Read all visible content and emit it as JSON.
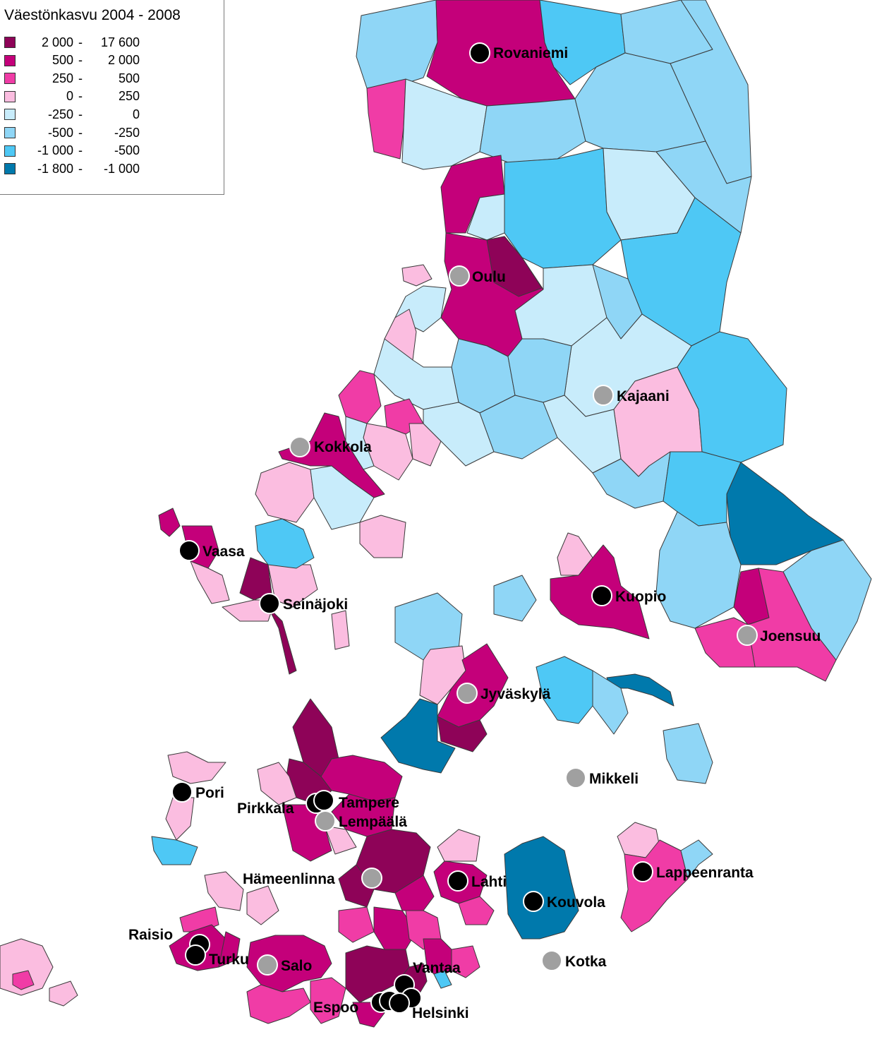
{
  "legend": {
    "title": "Väestönkasvu 2004 - 2008",
    "classes": [
      {
        "low": "2 000",
        "high": "17 600",
        "color": "#8e0358"
      },
      {
        "low": "500",
        "high": "2 000",
        "color": "#c4007a"
      },
      {
        "low": "250",
        "high": "500",
        "color": "#f03ca6"
      },
      {
        "low": "0",
        "high": "250",
        "color": "#fbbde0"
      },
      {
        "low": "-250",
        "high": "0",
        "color": "#c8ecfb"
      },
      {
        "low": "-500",
        "high": "-250",
        "color": "#8fd6f6"
      },
      {
        "low": "-1 000",
        "high": "-500",
        "color": "#4ec8f5"
      },
      {
        "low": "-1 800",
        "high": "-1 000",
        "color": "#0079ac"
      }
    ]
  },
  "cities": [
    {
      "name": "Rovaniemi",
      "marker": "black"
    },
    {
      "name": "Oulu",
      "marker": "gray"
    },
    {
      "name": "Kajaani",
      "marker": "gray"
    },
    {
      "name": "Kokkola",
      "marker": "gray"
    },
    {
      "name": "Vaasa",
      "marker": "black"
    },
    {
      "name": "Seinäjoki",
      "marker": "black"
    },
    {
      "name": "Kuopio",
      "marker": "black"
    },
    {
      "name": "Joensuu",
      "marker": "gray"
    },
    {
      "name": "Jyväskylä",
      "marker": "gray"
    },
    {
      "name": "Mikkeli",
      "marker": "gray"
    },
    {
      "name": "Pori",
      "marker": "black"
    },
    {
      "name": "Pirkkala",
      "marker": "black"
    },
    {
      "name": "Tampere",
      "marker": "black"
    },
    {
      "name": "Lempäälä",
      "marker": "gray"
    },
    {
      "name": "Hämeenlinna",
      "marker": "gray"
    },
    {
      "name": "Lahti",
      "marker": "black"
    },
    {
      "name": "Lappeenranta",
      "marker": "black"
    },
    {
      "name": "Kouvola",
      "marker": "black"
    },
    {
      "name": "Kotka",
      "marker": "gray"
    },
    {
      "name": "Raisio",
      "marker": "black"
    },
    {
      "name": "Turku",
      "marker": "black"
    },
    {
      "name": "Salo",
      "marker": "gray"
    },
    {
      "name": "Vantaa",
      "marker": "black"
    },
    {
      "name": "Espoo",
      "marker": "black"
    },
    {
      "name": "Helsinki",
      "marker": "black"
    }
  ]
}
